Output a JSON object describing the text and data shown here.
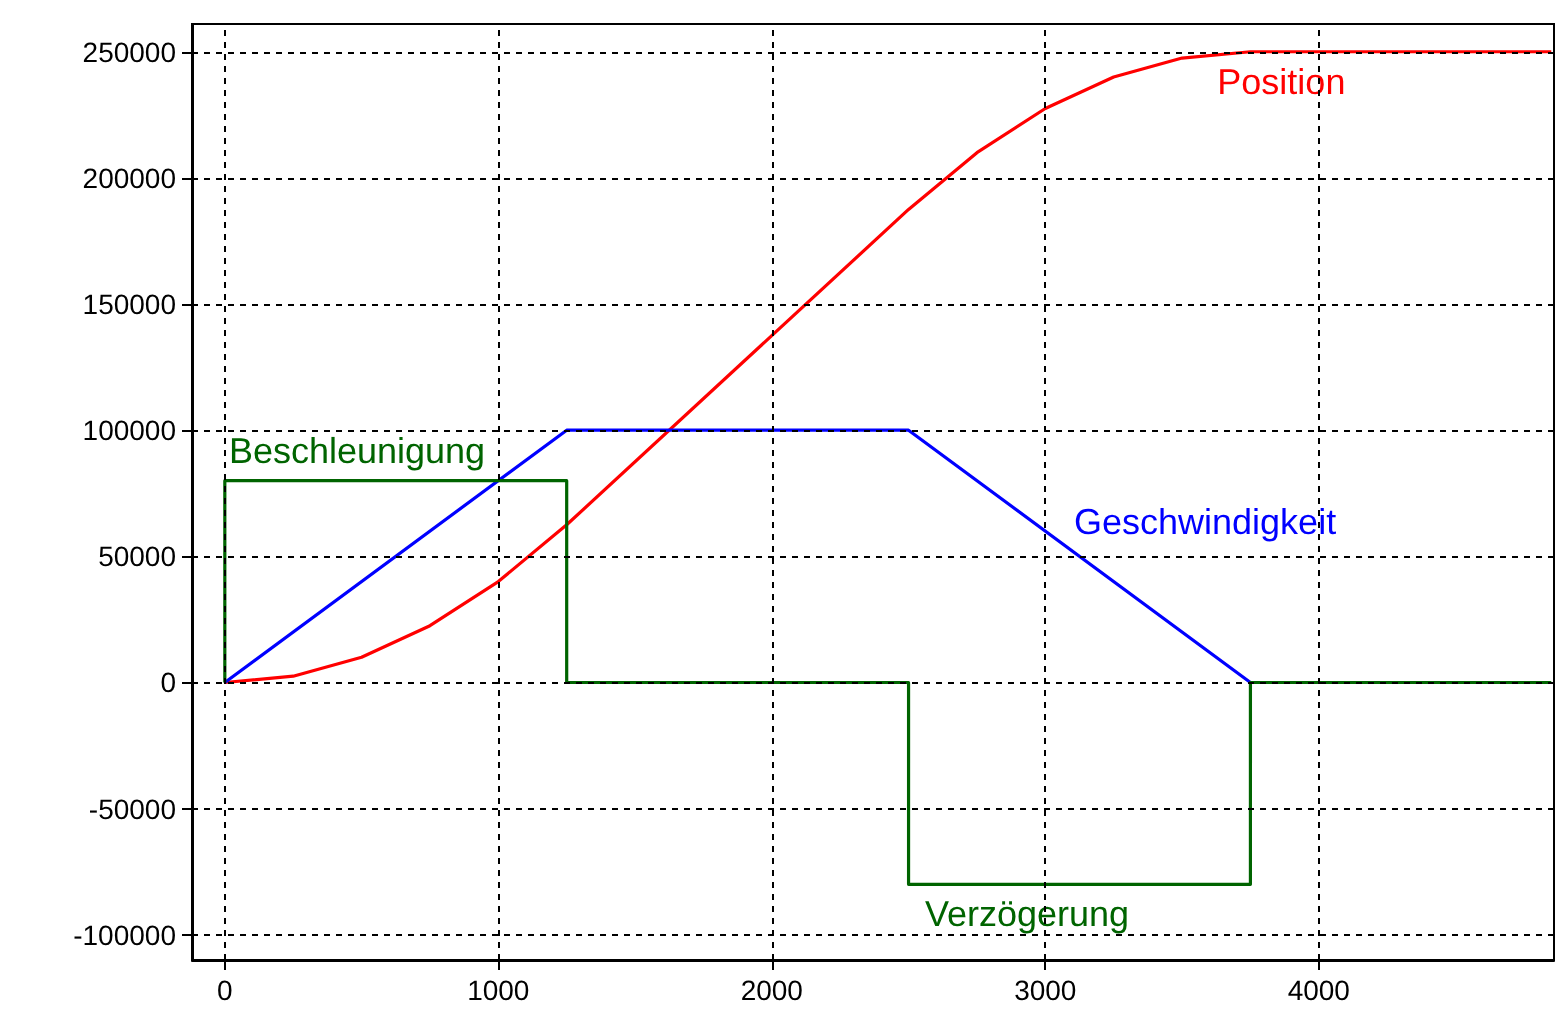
{
  "chart_data": {
    "type": "line",
    "xlim": [
      -120,
      4860
    ],
    "xticks": [
      0,
      1000,
      2000,
      3000,
      4000
    ],
    "ylim": [
      -110000,
      261000
    ],
    "yticks": [
      -100000,
      -50000,
      0,
      50000,
      100000,
      150000,
      200000,
      250000
    ],
    "grid": true,
    "marker": "none",
    "line_style": "solid",
    "series": [
      {
        "color": "#ff0000",
        "x": [
          0,
          250,
          500,
          750,
          1000,
          1250,
          2500,
          2750,
          3000,
          3250,
          3500,
          3750,
          4850
        ],
        "values": [
          0,
          2500,
          10000,
          22500,
          40000,
          62500,
          187500,
          210000,
          227500,
          240000,
          247500,
          250000,
          250000
        ]
      },
      {
        "color": "#0000ff",
        "x": [
          0,
          1250,
          2500,
          3750
        ],
        "values": [
          0,
          100000,
          100000,
          0
        ]
      },
      {
        "type": "step",
        "color": "#006400",
        "x": [
          0,
          0,
          1250,
          2500,
          3750,
          4850
        ],
        "values": [
          0,
          80000,
          0,
          -80000,
          0,
          0
        ]
      }
    ],
    "annotations": [
      {
        "text": "Position",
        "x": 3629,
        "y": 250000
      },
      {
        "text": "Beschleunigung",
        "x": 15,
        "y": 80000
      },
      {
        "text": "Geschwindigkeit",
        "x": 3105,
        "y": 51600
      },
      {
        "text": "Verzögerung",
        "x": 2560,
        "y": -80000
      }
    ]
  }
}
